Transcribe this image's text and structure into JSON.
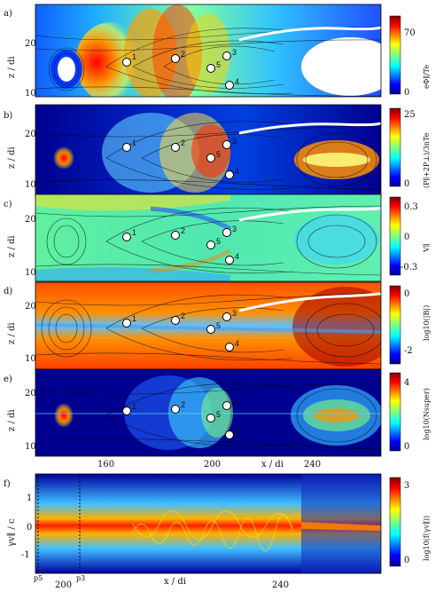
{
  "figure": {
    "panels": [
      {
        "letter": "a)",
        "cbar_label": "eΦ∥/Te",
        "cbar_ticks": [
          "70",
          "0"
        ],
        "colormap": "jet",
        "point_labels": [
          "1",
          "2",
          "5",
          "3",
          "4"
        ]
      },
      {
        "letter": "b)",
        "cbar_label": "(P∥+2P⊥)/3nTe",
        "cbar_ticks": [
          "25",
          "0"
        ],
        "colormap": "jet",
        "point_labels": [
          "1",
          "2",
          "5",
          "3",
          "4"
        ]
      },
      {
        "letter": "c)",
        "cbar_label": "V∥",
        "cbar_ticks": [
          "0.3",
          "0",
          "-0.3"
        ],
        "colormap": "jet",
        "point_labels": [
          "1",
          "2",
          "5",
          "3",
          "4"
        ]
      },
      {
        "letter": "d)",
        "cbar_label": "log10(|B|)",
        "cbar_ticks": [
          "0",
          "-2"
        ],
        "colormap": "jet",
        "point_labels": [
          "1",
          "2",
          "5",
          "3",
          "4"
        ]
      },
      {
        "letter": "e)",
        "cbar_label": "log10(Nsuper)",
        "cbar_ticks": [
          "4",
          "0"
        ],
        "colormap": "jet",
        "point_labels": [
          "1",
          "2",
          "5",
          "3",
          "4"
        ]
      }
    ],
    "shared_axes": {
      "ylabel": "z / di",
      "y_ticks": [
        "20",
        "10"
      ],
      "xlabel": "x / di",
      "x_ticks": [
        "160",
        "200",
        "240"
      ]
    },
    "panel_f": {
      "letter": "f)",
      "ylabel": "γv∥ / c",
      "y_ticks": [
        "1",
        "0",
        "-1"
      ],
      "xlabel": "x / di",
      "x_ticks": [
        "200",
        "240"
      ],
      "markers": [
        "p5",
        "p3"
      ],
      "cbar_label": "log10(f(γv∥))",
      "cbar_ticks": [
        "3",
        "0"
      ]
    }
  },
  "colors": {
    "jet": [
      "#00008f",
      "#0000ff",
      "#0080ff",
      "#00ffff",
      "#80ff80",
      "#ffff00",
      "#ff8000",
      "#ff0000",
      "#800000"
    ]
  }
}
